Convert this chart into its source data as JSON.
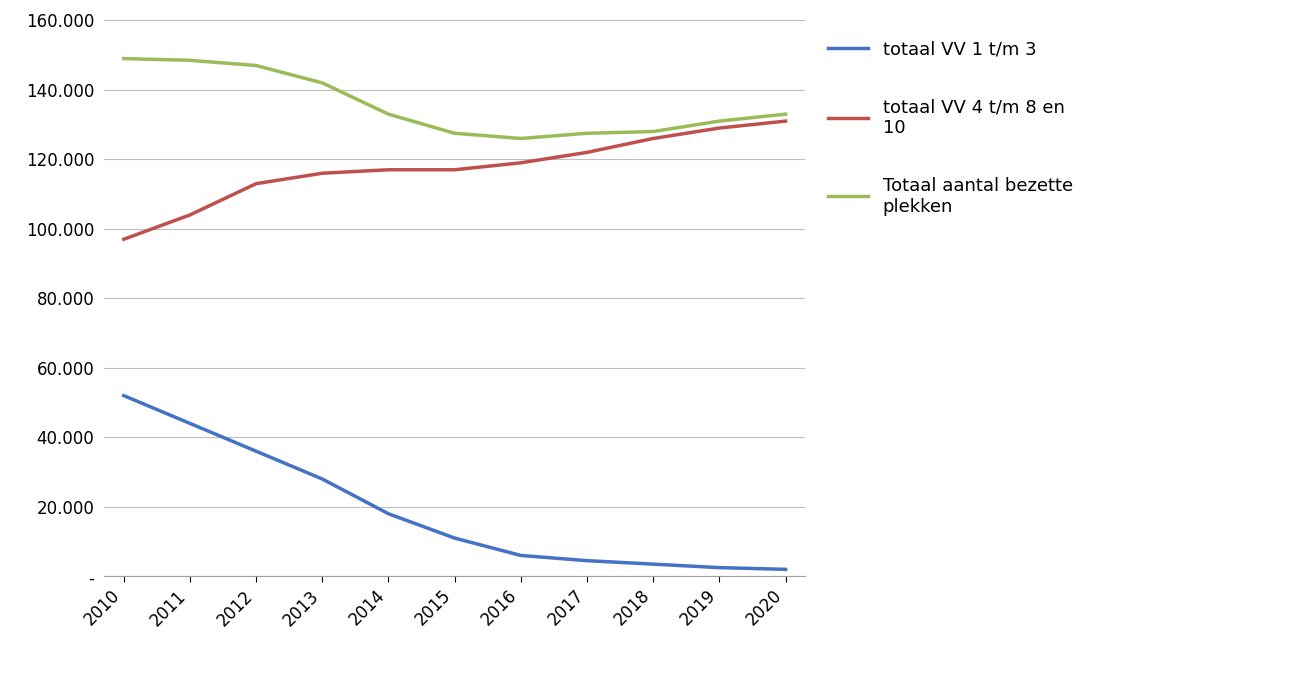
{
  "years": [
    2010,
    2011,
    2012,
    2013,
    2014,
    2015,
    2016,
    2017,
    2018,
    2019,
    2020
  ],
  "blue": [
    52000,
    44000,
    36000,
    28000,
    18000,
    11000,
    6000,
    4500,
    3500,
    2500,
    2000
  ],
  "red": [
    97000,
    104000,
    113000,
    116000,
    117000,
    117000,
    119000,
    122000,
    126000,
    129000,
    131000
  ],
  "green": [
    149000,
    148500,
    147000,
    142000,
    133000,
    127500,
    126000,
    127500,
    128000,
    131000,
    133000
  ],
  "blue_color": "#4472C4",
  "red_color": "#C0504D",
  "green_color": "#9BBB59",
  "blue_label": "totaal VV 1 t/m 3",
  "red_label": "totaal VV 4 t/m 8 en\n10",
  "green_label": "Totaal aantal bezette\nplekken",
  "ylim": [
    0,
    160000
  ],
  "yticks": [
    0,
    20000,
    40000,
    60000,
    80000,
    100000,
    120000,
    140000,
    160000
  ],
  "ytick_labels": [
    "-",
    "20.000",
    "40.000",
    "60.000",
    "80.000",
    "100.000",
    "120.000",
    "140.000",
    "160.000"
  ],
  "linewidth": 2.5,
  "background_color": "#ffffff",
  "grid_color": "#C0C0C0"
}
